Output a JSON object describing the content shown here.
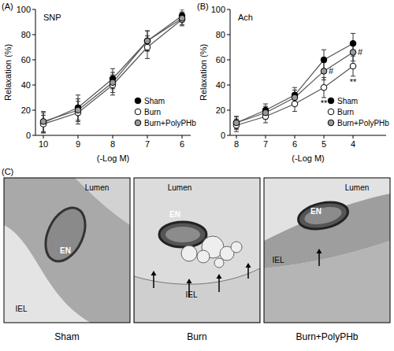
{
  "chart_data": [
    {
      "type": "line",
      "panel_label": "(A)",
      "title": "SNP",
      "x_label": "(-Log M)",
      "y_label": "Relaxation (%)",
      "categories": [
        "10",
        "9",
        "8",
        "7",
        "6"
      ],
      "ylim": [
        0,
        100
      ],
      "yticks": [
        0,
        20,
        40,
        60,
        80,
        100
      ],
      "grid": false,
      "legend": "lower right",
      "marker": "circle",
      "line_style": "solid",
      "series": [
        {
          "name": "Sham",
          "color": "#000000",
          "values": [
            10,
            22,
            45,
            75,
            95
          ],
          "errors": [
            8,
            10,
            8,
            8,
            5
          ]
        },
        {
          "name": "Burn",
          "color": "#ffffff",
          "values": [
            9,
            18,
            40,
            70,
            92
          ],
          "errors": [
            7,
            9,
            8,
            9,
            5
          ]
        },
        {
          "name": "Burn+PolyPHb",
          "color": "#999999",
          "values": [
            11,
            20,
            42,
            75,
            93
          ],
          "errors": [
            8,
            9,
            8,
            8,
            5
          ]
        }
      ]
    },
    {
      "type": "line",
      "panel_label": "(B)",
      "title": "Ach",
      "x_label": "(-Log M)",
      "y_label": "Relaxation (%)",
      "categories": [
        "8",
        "7",
        "6",
        "5",
        "4"
      ],
      "ylim": [
        0,
        100
      ],
      "yticks": [
        0,
        20,
        40,
        60,
        80,
        100
      ],
      "grid": false,
      "legend": "lower right",
      "marker": "circle",
      "line_style": "solid",
      "series": [
        {
          "name": "Sham",
          "color": "#000000",
          "values": [
            10,
            20,
            32,
            60,
            73
          ],
          "errors": [
            5,
            5,
            6,
            8,
            8
          ]
        },
        {
          "name": "Burn",
          "color": "#ffffff",
          "values": [
            8,
            15,
            25,
            38,
            55
          ],
          "errors": [
            5,
            5,
            6,
            8,
            8
          ]
        },
        {
          "name": "Burn+PolyPHb",
          "color": "#999999",
          "values": [
            10,
            18,
            30,
            51,
            66
          ],
          "errors": [
            5,
            5,
            6,
            7,
            7
          ]
        }
      ],
      "annotations": [
        {
          "text": "**",
          "x": "5",
          "series": "Burn"
        },
        {
          "text": "**",
          "x": "4",
          "series": "Burn"
        },
        {
          "text": "#",
          "x": "5",
          "series": "Burn+PolyPHb"
        },
        {
          "text": "#",
          "x": "4",
          "series": "Burn+PolyPHb"
        }
      ]
    }
  ],
  "micrographs": {
    "panel_label": "(C)",
    "images": [
      {
        "caption": "Sham",
        "labels": [
          "Lumen",
          "EN",
          "IEL"
        ]
      },
      {
        "caption": "Burn",
        "labels": [
          "Lumen",
          "EN",
          "IEL"
        ]
      },
      {
        "caption": "Burn+PolyPHb",
        "labels": [
          "Lumen",
          "EN",
          "IEL"
        ]
      }
    ]
  }
}
